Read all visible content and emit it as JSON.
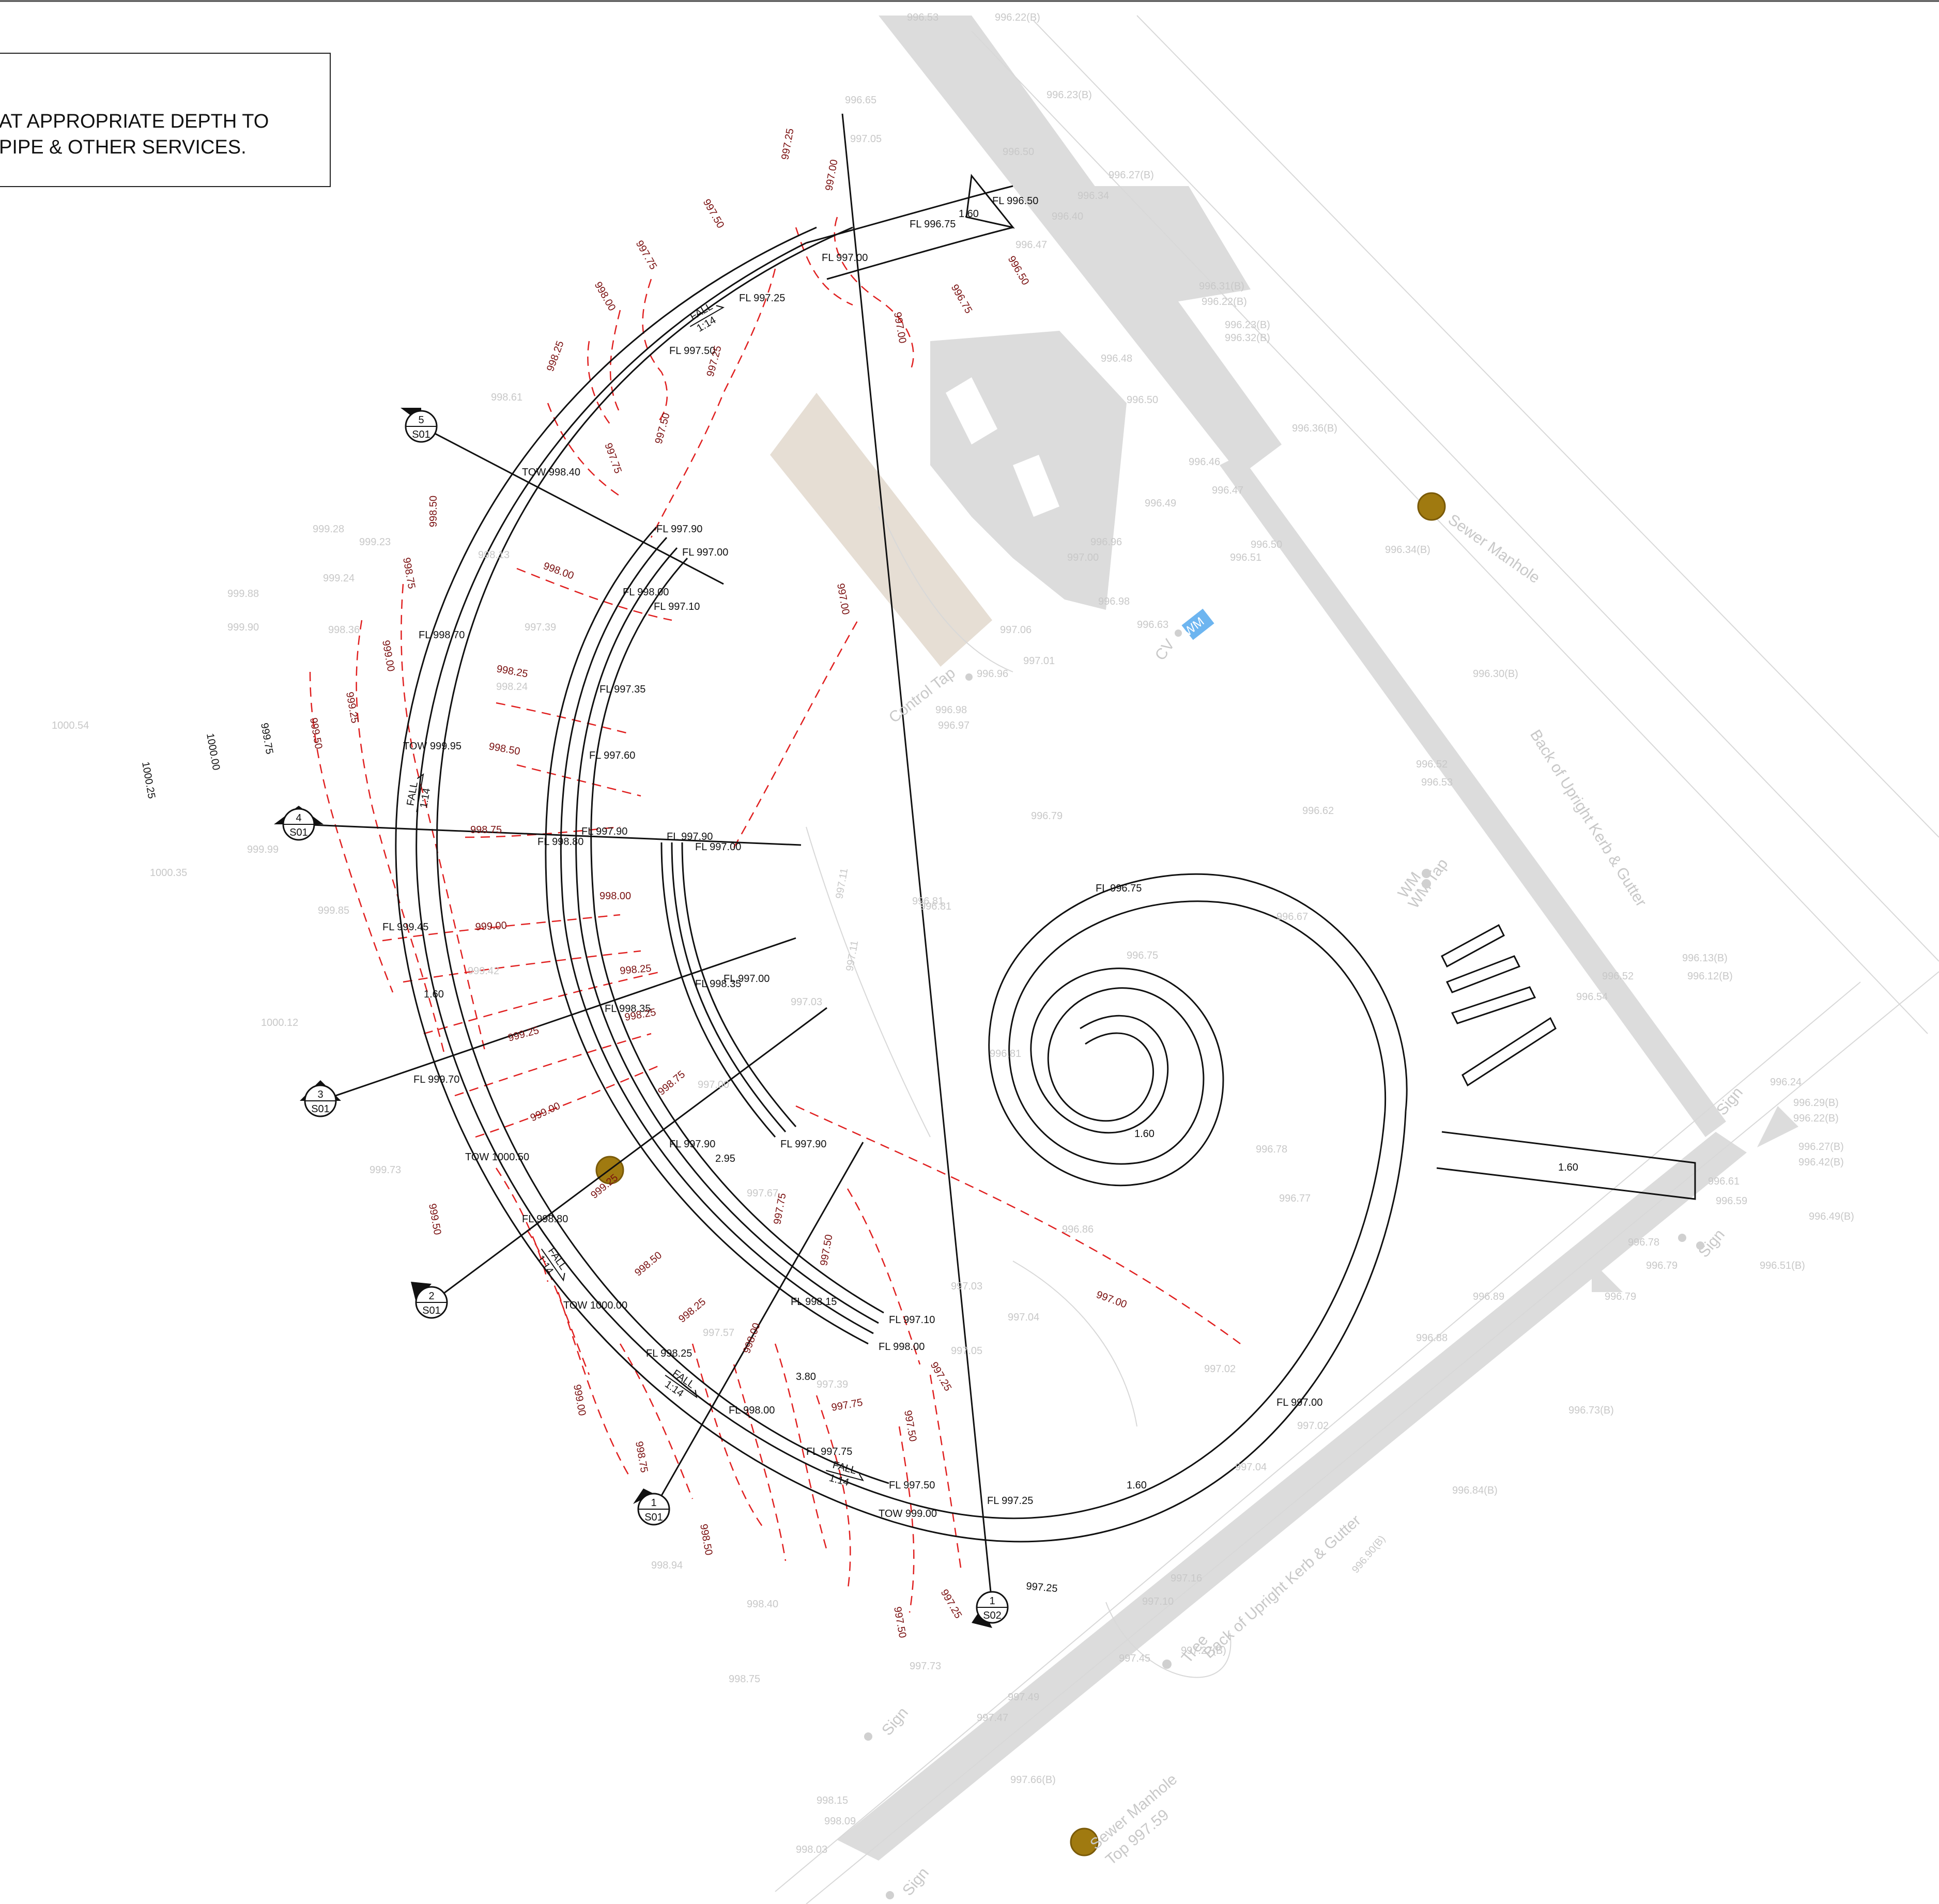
{
  "note": {
    "line1": "AT APPROPRIATE DEPTH TO",
    "line2": "PIPE & OTHER SERVICES."
  },
  "colors": {
    "linework": "#111111",
    "contours": "#e02020",
    "existing": "#d4d4d4",
    "existing_text": "#c8c8c8",
    "manhole": "#a07a10",
    "water_meter": "#6db5f0",
    "hatch": "#e6ded4"
  },
  "labels": {
    "sewer_manhole_1": "Sewer Manhole",
    "sewer_manhole_2": "Sewer Manhole",
    "sewer_manhole_2_top": "Top 997.59",
    "kerb_1": "Back of Upright Kerb & Gutter",
    "kerb_2": "Back of Upright Kerb & Gutter",
    "control_tap": "Control Tap",
    "wm": "WM",
    "wm_tap": "WM Tap",
    "cv": "CV",
    "tree": "Tree",
    "sign_1": "Sign",
    "sign_2": "Sign",
    "sign_3": "Sign",
    "sign_4": "Sign"
  },
  "sections": [
    {
      "num": "1",
      "sheet": "S01"
    },
    {
      "num": "2",
      "sheet": "S01"
    },
    {
      "num": "3",
      "sheet": "S01"
    },
    {
      "num": "4",
      "sheet": "S01"
    },
    {
      "num": "5",
      "sheet": "S01"
    },
    {
      "num": "1",
      "sheet": "S02"
    }
  ],
  "fall": {
    "word": "FALL",
    "ratio": "1:14"
  },
  "dims": {
    "d1": "1.60",
    "d2": "1.60",
    "d3": "1.60",
    "d4": "1.60",
    "d5": "1.60",
    "d6": "2.95",
    "d7": "3.80"
  },
  "design_levels": [
    "FL 996.50",
    "FL 996.75",
    "FL 997.00",
    "FL 997.25",
    "FL 997.50",
    "TOW 998.40",
    "FL 997.90",
    "FL 997.00",
    "FL 998.00",
    "FL 997.10",
    "FL 998.70",
    "FL 997.35",
    "TOW 999.95",
    "FL 997.60",
    "FL 997.90",
    "FL 998.80",
    "FL 997.90",
    "FL 997.00",
    "FL 999.45",
    "FL 998.35",
    "FL 998.35",
    "FL 997.00",
    "FL 999.70",
    "FL 997.90",
    "FL 997.90",
    "TOW 1000.50",
    "FL 998.80",
    "FL 998.15",
    "TOW 1000.00",
    "FL 997.10",
    "FL 998.00",
    "FL 998.25",
    "FL 998.00",
    "FL 997.75",
    "FL 997.50",
    "TOW 999.00",
    "FL 997.25",
    "FL 997.00",
    "FL 996.75"
  ],
  "contours": [
    "997.25",
    "997.00",
    "997.50",
    "997.75",
    "998.00",
    "998.25",
    "996.75",
    "996.50",
    "997.00",
    "997.25",
    "997.50",
    "997.75",
    "998.50",
    "998.75",
    "999.00",
    "999.25",
    "999.50",
    "999.75",
    "998.00",
    "998.25",
    "998.50",
    "998.75",
    "999.00",
    "999.25",
    "997.00",
    "998.00",
    "998.25",
    "998.25",
    "998.50",
    "998.75",
    "999.00",
    "999.25",
    "999.50",
    "999.00",
    "998.75",
    "998.50",
    "998.25",
    "998.00",
    "997.75",
    "997.50",
    "997.25",
    "997.75",
    "997.50",
    "997.25",
    "997.50",
    "997.00",
    "997.25"
  ],
  "existing_levels": [
    "996.53",
    "996.22(B)",
    "996.23(B)",
    "996.65",
    "997.05",
    "996.50",
    "996.27(B)",
    "996.34",
    "996.40",
    "996.47",
    "996.31(B)",
    "996.22(B)",
    "996.23(B)",
    "996.32(B)",
    "996.48",
    "996.50",
    "996.36(B)",
    "996.46",
    "996.47",
    "996.49",
    "996.50",
    "996.51",
    "996.34(B)",
    "996.96",
    "997.00",
    "996.98",
    "996.63",
    "997.06",
    "997.01",
    "996.96",
    "996.98",
    "996.97",
    "996.30(B)",
    "996.52",
    "996.53",
    "996.79",
    "996.62",
    "996.81",
    "996.67",
    "996.75",
    "996.13(B)",
    "996.12(B)",
    "996.52",
    "996.54",
    "996.81",
    "996.78",
    "996.77",
    "996.86",
    "996.24",
    "996.29(B)",
    "996.22(B)",
    "996.27(B)",
    "996.42(B)",
    "996.61",
    "996.59",
    "996.49(B)",
    "996.78",
    "996.79",
    "996.51(B)",
    "996.79",
    "996.89",
    "996.88",
    "996.73(B)",
    "997.02",
    "997.04",
    "996.84(B)",
    "996.90(B)",
    "997.16",
    "997.10",
    "997.27(B)",
    "997.45",
    "997.49",
    "997.47",
    "997.66(B)",
    "998.15",
    "998.09",
    "998.03",
    "998.40",
    "998.75",
    "998.94",
    "998.61",
    "999.28",
    "999.23",
    "999.24",
    "999.88",
    "999.90",
    "998.36",
    "1000.54",
    "1000.00",
    "1000.25",
    "999.99",
    "1000.35",
    "999.85",
    "1000.12",
    "999.73",
    "999.42",
    "997.39",
    "998.24",
    "998.13",
    "997.67",
    "997.57",
    "997.39",
    "997.73",
    "997.03",
    "997.04",
    "997.05",
    "997.02",
    "997.11",
    "997.11",
    "996.81",
    "997.03",
    "997.00"
  ]
}
